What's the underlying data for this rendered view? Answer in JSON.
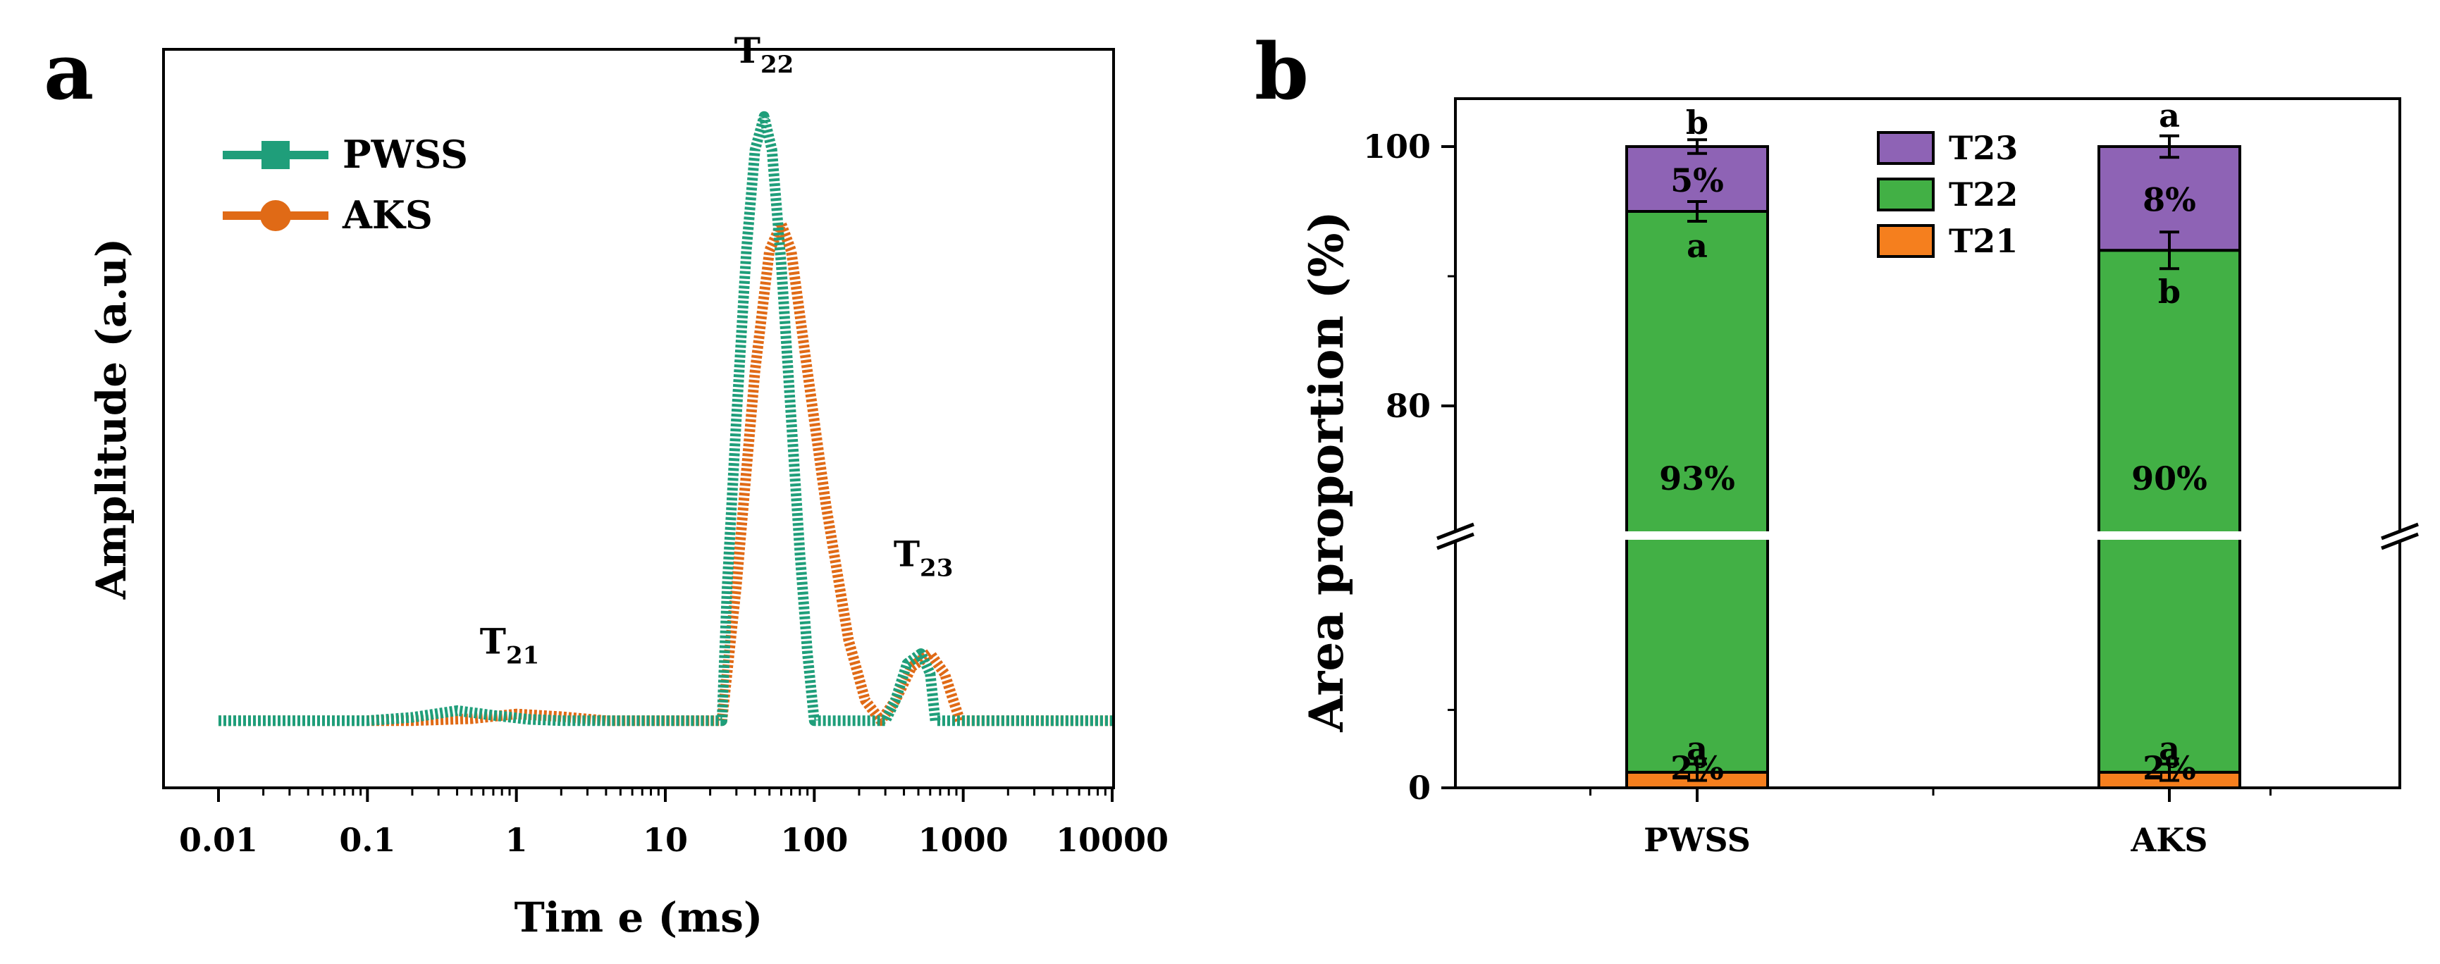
{
  "chart_data": [
    {
      "panel": "a",
      "type": "line",
      "xlabel": "Tim e (ms)",
      "ylabel": "Amplitude (a.u)",
      "x_scale": "log",
      "xlim": [
        0.01,
        10000
      ],
      "x_ticks": [
        "0.01",
        "0.1",
        "1",
        "10",
        "100",
        "1000",
        "10000"
      ],
      "ylim": [
        0,
        1.1
      ],
      "legend": "top-left",
      "series": [
        {
          "name": "PWSS",
          "color": "#1f9e7a",
          "points": [
            [
              0.01,
              0.1
            ],
            [
              0.1,
              0.1
            ],
            [
              0.2,
              0.105
            ],
            [
              0.4,
              0.115
            ],
            [
              0.7,
              0.108
            ],
            [
              1.2,
              0.102
            ],
            [
              2,
              0.1
            ],
            [
              10,
              0.1
            ],
            [
              20,
              0.1
            ],
            [
              24,
              0.1
            ],
            [
              26,
              0.3
            ],
            [
              30,
              0.55
            ],
            [
              35,
              0.8
            ],
            [
              40,
              0.95
            ],
            [
              46,
              1.0
            ],
            [
              52,
              0.95
            ],
            [
              60,
              0.78
            ],
            [
              70,
              0.55
            ],
            [
              80,
              0.35
            ],
            [
              90,
              0.2
            ],
            [
              100,
              0.1
            ],
            [
              150,
              0.1
            ],
            [
              300,
              0.1
            ],
            [
              350,
              0.13
            ],
            [
              420,
              0.185
            ],
            [
              520,
              0.2
            ],
            [
              600,
              0.17
            ],
            [
              650,
              0.1
            ],
            [
              1000,
              0.1
            ],
            [
              10000,
              0.1
            ]
          ]
        },
        {
          "name": "AKS",
          "color": "#e06a16",
          "points": [
            [
              0.01,
              0.1
            ],
            [
              0.2,
              0.1
            ],
            [
              0.5,
              0.103
            ],
            [
              1,
              0.11
            ],
            [
              2,
              0.106
            ],
            [
              4,
              0.1
            ],
            [
              10,
              0.1
            ],
            [
              22,
              0.1
            ],
            [
              24,
              0.1
            ],
            [
              30,
              0.3
            ],
            [
              40,
              0.62
            ],
            [
              50,
              0.8
            ],
            [
              60,
              0.84
            ],
            [
              70,
              0.8
            ],
            [
              90,
              0.62
            ],
            [
              120,
              0.42
            ],
            [
              170,
              0.22
            ],
            [
              220,
              0.13
            ],
            [
              280,
              0.1
            ],
            [
              350,
              0.13
            ],
            [
              450,
              0.18
            ],
            [
              600,
              0.2
            ],
            [
              750,
              0.17
            ],
            [
              950,
              0.1
            ],
            [
              10000,
              0.1
            ]
          ]
        }
      ],
      "annotations": [
        {
          "base": "T",
          "sub": "21",
          "x": 0.9,
          "y": 0.2
        },
        {
          "base": "T",
          "sub": "22",
          "x": 46,
          "y": 1.08
        },
        {
          "base": "T",
          "sub": "23",
          "x": 540,
          "y": 0.33
        }
      ]
    },
    {
      "panel": "b",
      "type": "bar",
      "stacked": true,
      "ylabel": "Area proportion (%)",
      "categories": [
        "PWSS",
        "AKS"
      ],
      "y_ticks": [
        "0",
        "80",
        "100"
      ],
      "y_break": true,
      "ylim": [
        0,
        100
      ],
      "legend": "top-center",
      "series": [
        {
          "name": "T21",
          "color": "#f57f1e",
          "values": [
            2,
            2
          ],
          "labels": [
            "2%",
            "2%"
          ],
          "letters": [
            "a",
            "a"
          ],
          "errors": [
            0.3,
            0.3
          ]
        },
        {
          "name": "T22",
          "color": "#42b045",
          "values": [
            93,
            90
          ],
          "labels": [
            "93%",
            "90%"
          ],
          "letters": [
            "a",
            "b"
          ],
          "errors": [
            0.5,
            1.5
          ]
        },
        {
          "name": "T23",
          "color": "#8e63b5",
          "values": [
            5,
            8
          ],
          "labels": [
            "5%",
            "8%"
          ],
          "letters": [
            "b",
            "a"
          ],
          "errors": [
            0.15,
            0.6
          ]
        }
      ]
    }
  ]
}
